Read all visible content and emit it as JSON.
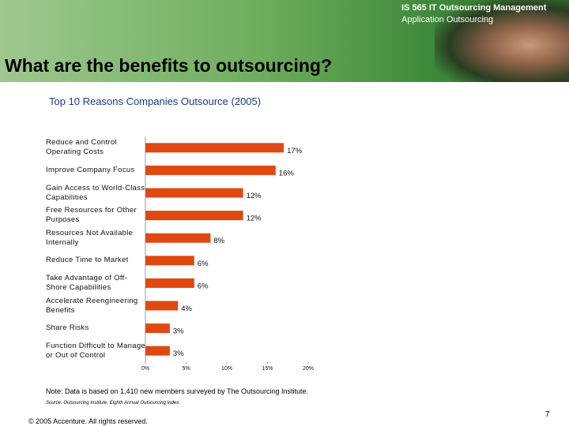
{
  "header": {
    "course": "IS 565 IT Outsourcing Management",
    "topic": "Application Outsourcing"
  },
  "slide_title": "What are the benefits to outsourcing?",
  "chart_data": {
    "type": "bar",
    "orientation": "horizontal",
    "title": "Top 10 Reasons Companies Outsource (2005)",
    "categories": [
      "Reduce and Control Operating Costs",
      "Improve Company Focus",
      "Gain Access to World-Class Capabilities",
      "Free Resources for Other Purposes",
      "Resources Not Available Internally",
      "Reduce Time to Market",
      "Take Advantage of Off-Shore Capabilities",
      "Accelerate Reengineering Benefits",
      "Share Risks",
      "Function Difficult to Manage or Out of Control"
    ],
    "values": [
      17,
      16,
      12,
      12,
      8,
      6,
      6,
      4,
      3,
      3
    ],
    "value_labels": [
      "17%",
      "16%",
      "12%",
      "12%",
      "8%",
      "6%",
      "6%",
      "4%",
      "3%",
      "3%"
    ],
    "color": "#e04812",
    "xlim": [
      0,
      20
    ],
    "xticks": [
      {
        "value": 0,
        "label": "0%"
      },
      {
        "value": 5,
        "label": "5%"
      },
      {
        "value": 10,
        "label": "10%"
      },
      {
        "value": 15,
        "label": "15%"
      },
      {
        "value": 20,
        "label": "20%"
      }
    ],
    "grid": false
  },
  "note": "Note: Data is based on 1,410 new members surveyed by The Outsourcing Institute.",
  "source": "Source: Outsourcing Institute, Eighth Annual Outsourcing Index.",
  "footer": "© 2005 Accenture. All rights reserved.",
  "page_number": "7"
}
